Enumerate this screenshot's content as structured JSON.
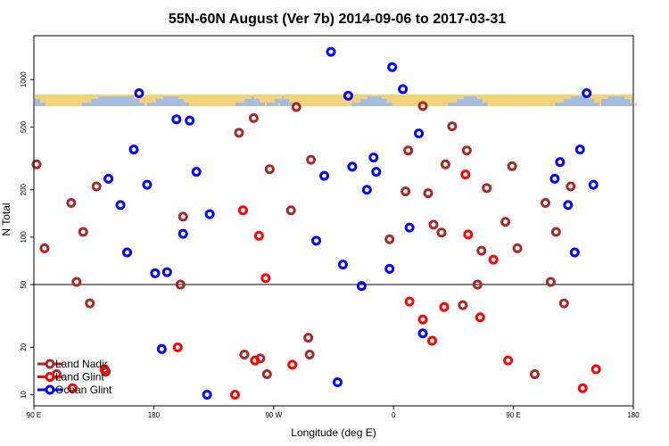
{
  "chart_data": {
    "type": "scatter",
    "title": "55N-60N August (Ver 7b)   2014-09-06 to 2017-03-31",
    "xlabel": "Longitude (deg E)",
    "ylabel": "N Total",
    "x_ticks": [
      {
        "value": 90,
        "label": "90 E"
      },
      {
        "value": 180,
        "label": "180"
      },
      {
        "value": 270,
        "label": "90 W"
      },
      {
        "value": 360,
        "label": "0"
      },
      {
        "value": 450,
        "label": "90 E"
      },
      {
        "value": 540,
        "label": "180"
      }
    ],
    "y_ticks": [
      {
        "value": 10,
        "label": "10"
      },
      {
        "value": 20,
        "label": "20"
      },
      {
        "value": 50,
        "label": "50"
      },
      {
        "value": 100,
        "label": "100"
      },
      {
        "value": 200,
        "label": "200"
      },
      {
        "value": 500,
        "label": "500"
      },
      {
        "value": 1000,
        "label": "1000"
      }
    ],
    "xlim": [
      90,
      540
    ],
    "ylim": [
      8.5,
      1900
    ],
    "y_scale": "log",
    "reference_line": 50,
    "legend_position": "bottom-left",
    "series": [
      {
        "name": "Land Nadir",
        "color": "#a52a2a",
        "points": [
          [
            92,
            290
          ],
          [
            98,
            85
          ],
          [
            107,
            13.5
          ],
          [
            118,
            165
          ],
          [
            122,
            52
          ],
          [
            127,
            108
          ],
          [
            132,
            38
          ],
          [
            137,
            210
          ],
          [
            144,
            14
          ],
          [
            200,
            50
          ],
          [
            202,
            135
          ],
          [
            244,
            460
          ],
          [
            248,
            18
          ],
          [
            255,
            570
          ],
          [
            260,
            17
          ],
          [
            265,
            13.5
          ],
          [
            267,
            270
          ],
          [
            283,
            148
          ],
          [
            287,
            670
          ],
          [
            296,
            23
          ],
          [
            297,
            18
          ],
          [
            298,
            310
          ],
          [
            357,
            97
          ],
          [
            369,
            195
          ],
          [
            371,
            355
          ],
          [
            382,
            680
          ],
          [
            386,
            190
          ],
          [
            390,
            120
          ],
          [
            396,
            107
          ],
          [
            399,
            290
          ],
          [
            404,
            505
          ],
          [
            412,
            37
          ],
          [
            415,
            355
          ],
          [
            423,
            50
          ],
          [
            426,
            82
          ],
          [
            430,
            205
          ],
          [
            444,
            125
          ],
          [
            449,
            282
          ],
          [
            453,
            85
          ],
          [
            466,
            13.5
          ],
          [
            474,
            165
          ],
          [
            478,
            52
          ],
          [
            482,
            108
          ],
          [
            488,
            38
          ],
          [
            493,
            210
          ]
        ]
      },
      {
        "name": "Land Glint",
        "color": "#ff0000",
        "points": [
          [
            119,
            11
          ],
          [
            143,
            14.5
          ],
          [
            198,
            20
          ],
          [
            241,
            10
          ],
          [
            247,
            148
          ],
          [
            256,
            16.5
          ],
          [
            259,
            102
          ],
          [
            264,
            55
          ],
          [
            284,
            15.5
          ],
          [
            372,
            39
          ],
          [
            382,
            30
          ],
          [
            389,
            22
          ],
          [
            398,
            36
          ],
          [
            414,
            250
          ],
          [
            416,
            104
          ],
          [
            425,
            31
          ],
          [
            435,
            72
          ],
          [
            446,
            16.5
          ],
          [
            502,
            11
          ],
          [
            512,
            14.5
          ]
        ]
      },
      {
        "name": "Ocean Glint",
        "color": "#0000ff",
        "points": [
          [
            146,
            235
          ],
          [
            155,
            160
          ],
          [
            160,
            80
          ],
          [
            165,
            360
          ],
          [
            169,
            820
          ],
          [
            175,
            215
          ],
          [
            181,
            59
          ],
          [
            186,
            19.5
          ],
          [
            190,
            60
          ],
          [
            197,
            560
          ],
          [
            202,
            105
          ],
          [
            207,
            550
          ],
          [
            212,
            260
          ],
          [
            220,
            10
          ],
          [
            222,
            140
          ],
          [
            302,
            95
          ],
          [
            308,
            245
          ],
          [
            313,
            1500
          ],
          [
            318,
            12
          ],
          [
            322,
            67
          ],
          [
            326,
            790
          ],
          [
            329,
            280
          ],
          [
            336,
            49
          ],
          [
            340,
            200
          ],
          [
            345,
            320
          ],
          [
            347,
            260
          ],
          [
            357,
            63
          ],
          [
            359,
            1200
          ],
          [
            367,
            870
          ],
          [
            372,
            115
          ],
          [
            379,
            455
          ],
          [
            382,
            24.5
          ],
          [
            481,
            235
          ],
          [
            485,
            300
          ],
          [
            491,
            160
          ],
          [
            496,
            80
          ],
          [
            500,
            360
          ],
          [
            505,
            820
          ],
          [
            510,
            215
          ]
        ]
      }
    ],
    "background": "world map strip (land = tan, ocean = light blue) between N Total ~660 and ~780"
  },
  "legend": {
    "items": [
      {
        "label": "Land Nadir",
        "color": "#a52a2a"
      },
      {
        "label": "Land Glint",
        "color": "#ff0000"
      },
      {
        "label": "Ocean Glint",
        "color": "#0000ff"
      }
    ]
  },
  "colors": {
    "land": "#f2d27a",
    "ocean": "#a7bcdc",
    "axis": "#000000"
  }
}
